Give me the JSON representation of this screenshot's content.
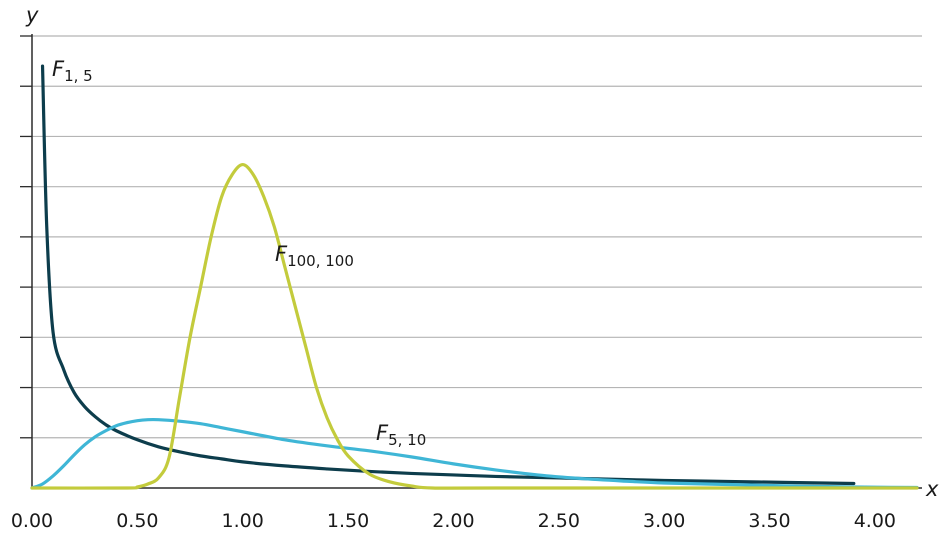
{
  "chart_data": {
    "type": "line",
    "title": "",
    "xlabel": "x",
    "ylabel": "y",
    "xlim": [
      0,
      4.2
    ],
    "x_ticks": [
      "0.00",
      "0.50",
      "1.00",
      "1.50",
      "2.00",
      "2.50",
      "3.00",
      "3.50",
      "4.00"
    ],
    "grid": "horizontal",
    "series": [
      {
        "name": "F1, 5",
        "label_main": "F",
        "label_sub": "1, 5",
        "color": "#0d3d4c",
        "points": [
          [
            0.05,
            4.2
          ],
          [
            0.07,
            2.6
          ],
          [
            0.1,
            1.55
          ],
          [
            0.15,
            1.18
          ],
          [
            0.2,
            0.95
          ],
          [
            0.25,
            0.81
          ],
          [
            0.3,
            0.71
          ],
          [
            0.35,
            0.63
          ],
          [
            0.4,
            0.57
          ],
          [
            0.5,
            0.48
          ],
          [
            0.6,
            0.41
          ],
          [
            0.7,
            0.36
          ],
          [
            0.8,
            0.32
          ],
          [
            0.9,
            0.29
          ],
          [
            1.0,
            0.26
          ],
          [
            1.2,
            0.22
          ],
          [
            1.4,
            0.19
          ],
          [
            1.6,
            0.165
          ],
          [
            1.8,
            0.145
          ],
          [
            2.0,
            0.13
          ],
          [
            2.2,
            0.115
          ],
          [
            2.5,
            0.1
          ],
          [
            2.8,
            0.085
          ],
          [
            3.0,
            0.075
          ],
          [
            3.3,
            0.065
          ],
          [
            3.6,
            0.055
          ],
          [
            3.9,
            0.045
          ]
        ]
      },
      {
        "name": "F5, 10",
        "label_main": "F",
        "label_sub": "5, 10",
        "color": "#3fb6d6",
        "points": [
          [
            0.0,
            0.0
          ],
          [
            0.05,
            0.04
          ],
          [
            0.1,
            0.12
          ],
          [
            0.15,
            0.22
          ],
          [
            0.2,
            0.33
          ],
          [
            0.25,
            0.43
          ],
          [
            0.3,
            0.51
          ],
          [
            0.35,
            0.57
          ],
          [
            0.4,
            0.62
          ],
          [
            0.45,
            0.65
          ],
          [
            0.5,
            0.67
          ],
          [
            0.55,
            0.68
          ],
          [
            0.6,
            0.68
          ],
          [
            0.7,
            0.665
          ],
          [
            0.8,
            0.64
          ],
          [
            0.9,
            0.6
          ],
          [
            1.0,
            0.56
          ],
          [
            1.2,
            0.48
          ],
          [
            1.4,
            0.42
          ],
          [
            1.6,
            0.37
          ],
          [
            1.8,
            0.31
          ],
          [
            2.0,
            0.24
          ],
          [
            2.2,
            0.18
          ],
          [
            2.4,
            0.13
          ],
          [
            2.6,
            0.095
          ],
          [
            2.8,
            0.07
          ],
          [
            3.0,
            0.05
          ],
          [
            3.3,
            0.035
          ],
          [
            3.6,
            0.02
          ],
          [
            3.9,
            0.01
          ],
          [
            4.2,
            0.005
          ]
        ]
      },
      {
        "name": "F100, 100",
        "label_main": "F",
        "label_sub": "100, 100",
        "color": "#c3cb3c",
        "points": [
          [
            0.0,
            0.0
          ],
          [
            0.45,
            0.0
          ],
          [
            0.5,
            0.01
          ],
          [
            0.55,
            0.04
          ],
          [
            0.6,
            0.1
          ],
          [
            0.65,
            0.3
          ],
          [
            0.7,
            0.9
          ],
          [
            0.75,
            1.5
          ],
          [
            0.8,
            2.0
          ],
          [
            0.85,
            2.5
          ],
          [
            0.9,
            2.9
          ],
          [
            0.95,
            3.12
          ],
          [
            1.0,
            3.22
          ],
          [
            1.05,
            3.12
          ],
          [
            1.1,
            2.9
          ],
          [
            1.15,
            2.6
          ],
          [
            1.2,
            2.2
          ],
          [
            1.25,
            1.8
          ],
          [
            1.3,
            1.4
          ],
          [
            1.35,
            1.0
          ],
          [
            1.4,
            0.7
          ],
          [
            1.45,
            0.48
          ],
          [
            1.5,
            0.32
          ],
          [
            1.6,
            0.14
          ],
          [
            1.7,
            0.06
          ],
          [
            1.8,
            0.02
          ],
          [
            1.9,
            0.0
          ],
          [
            2.2,
            0.0
          ],
          [
            4.2,
            0.0
          ]
        ]
      }
    ]
  }
}
